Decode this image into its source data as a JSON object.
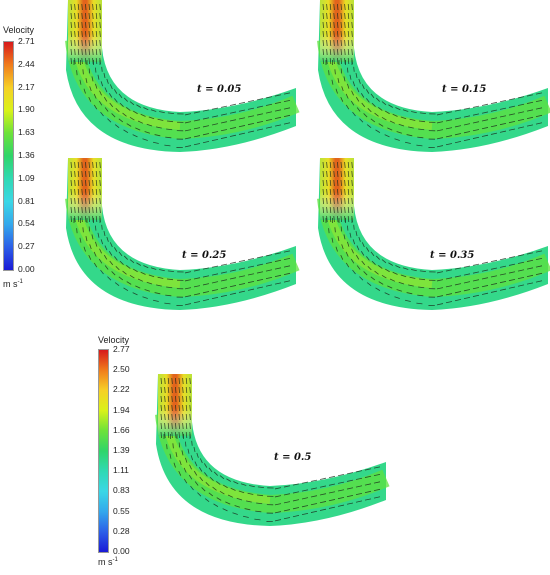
{
  "legend_top": {
    "title": "Velocity",
    "ticks": [
      "2.71",
      "2.44",
      "2.17",
      "1.90",
      "1.63",
      "1.36",
      "1.09",
      "0.81",
      "0.54",
      "0.27",
      "0.00"
    ],
    "unit": "m s",
    "unit_exp": "-1"
  },
  "legend_bottom": {
    "title": "Velocity",
    "ticks": [
      "2.77",
      "2.50",
      "2.22",
      "1.94",
      "1.66",
      "1.39",
      "1.11",
      "0.83",
      "0.55",
      "0.28",
      "0.00"
    ],
    "unit": "m s",
    "unit_exp": "-1"
  },
  "panels": [
    {
      "label": "t = 0.05"
    },
    {
      "label": "t = 0.15"
    },
    {
      "label": "t = 0.25"
    },
    {
      "label": "t = 0.35"
    },
    {
      "label": "t = 0.5"
    }
  ],
  "colormap": [
    "#d7191c",
    "#f07c1c",
    "#f6d027",
    "#d9f21a",
    "#6de23a",
    "#2fd56a",
    "#30d9b4",
    "#3bd7e6",
    "#34a8ec",
    "#2c5fe8",
    "#1a1ad6"
  ]
}
